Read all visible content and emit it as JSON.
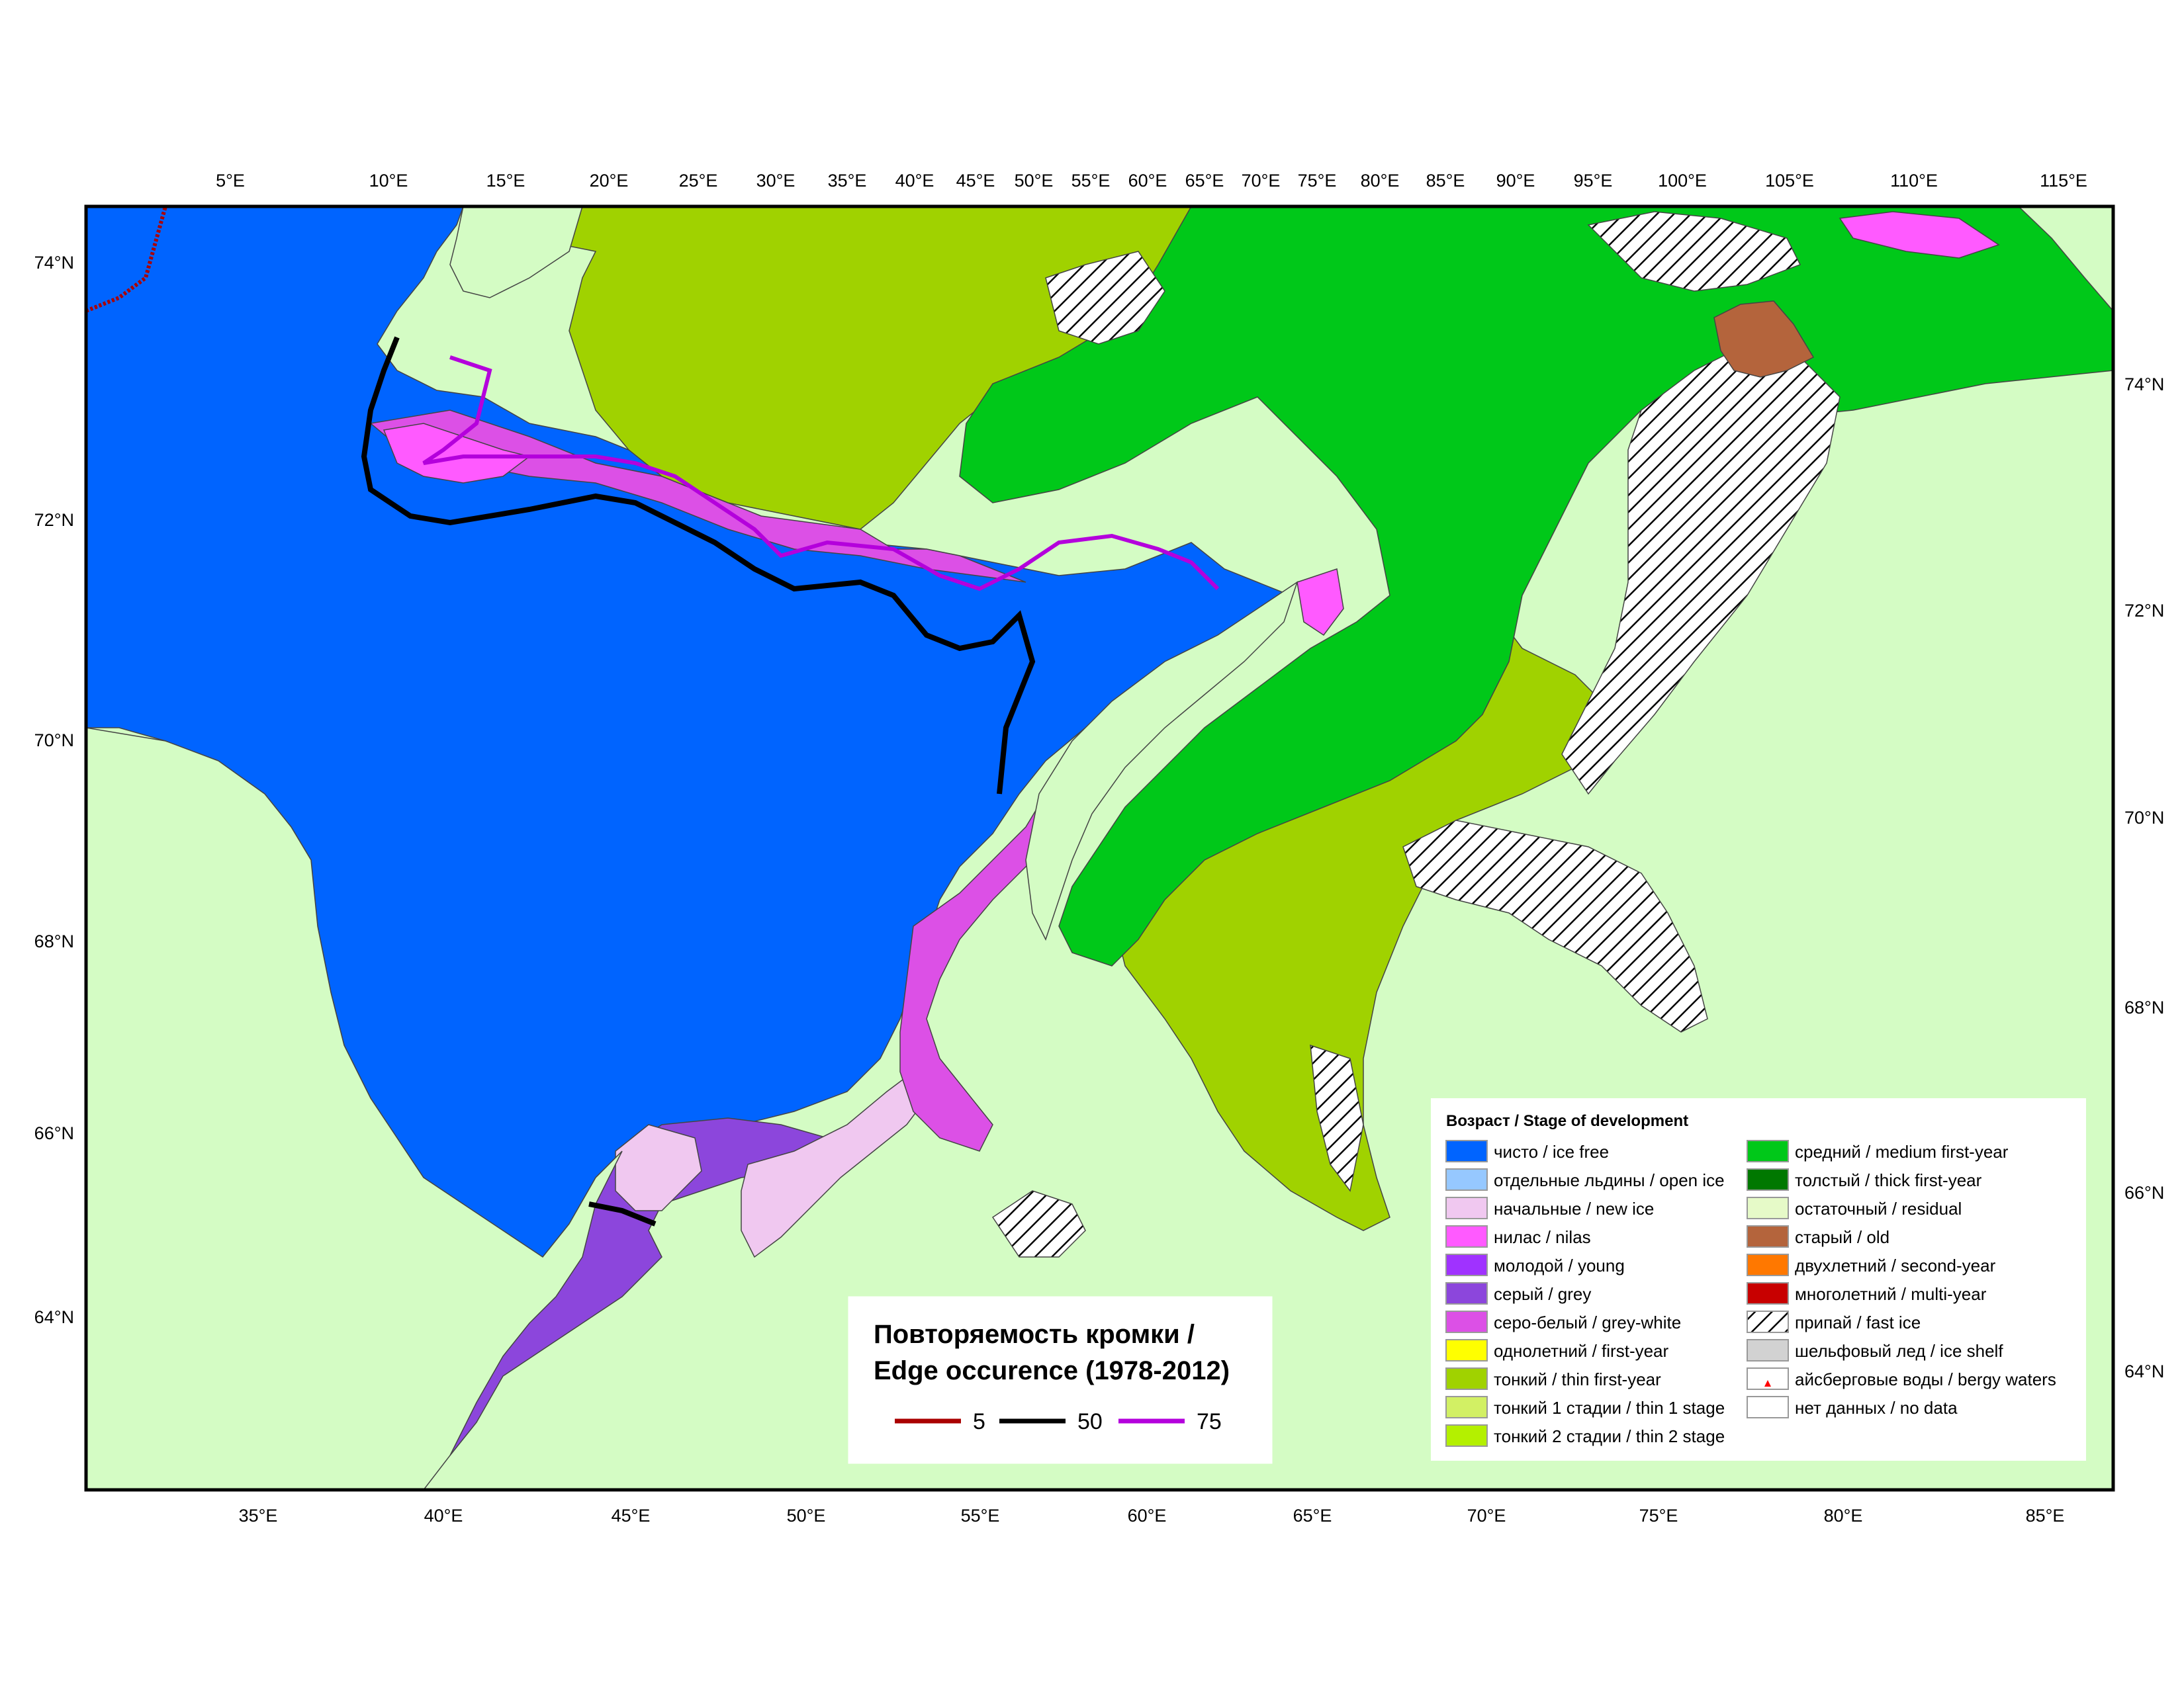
{
  "map": {
    "colors": {
      "land": "#d4fcc4",
      "ice_free": "#0064ff",
      "new_ice": "#f0c8f0",
      "nilas": "#ff5aff",
      "young": "#a032ff",
      "grey": "#8c46dc",
      "grey_white": "#dc50e6",
      "thin_first_year": "#a0d200",
      "medium_first_year": "#00c819",
      "old": "#b4643c",
      "edge_5": "#aa0000",
      "edge_50": "#000000",
      "edge_75": "#b400dc",
      "frame": "#000000"
    },
    "top_lon_labels": [
      "5°E",
      "10°E",
      "15°E",
      "20°E",
      "25°E",
      "30°E",
      "35°E",
      "40°E",
      "45°E",
      "50°E",
      "55°E",
      "60°E",
      "65°E",
      "70°E",
      "75°E",
      "80°E",
      "85°E",
      "90°E",
      "95°E",
      "100°E",
      "105°E",
      "110°E",
      "115°E"
    ],
    "bottom_lon_labels": [
      "35°E",
      "40°E",
      "45°E",
      "50°E",
      "55°E",
      "60°E",
      "65°E",
      "70°E",
      "75°E",
      "80°E",
      "85°E"
    ],
    "left_lat_labels": [
      "74°N",
      "72°N",
      "70°N",
      "68°N",
      "66°N",
      "64°N"
    ],
    "right_lat_labels": [
      "74°N",
      "72°N",
      "70°N",
      "68°N",
      "66°N",
      "64°N"
    ]
  },
  "edge_box": {
    "title_line1": "Повторяемость кромки /",
    "title_line2": "Edge occurence (1978-2012)",
    "items": [
      {
        "label": "5",
        "color": "#aa0000"
      },
      {
        "label": "50",
        "color": "#000000"
      },
      {
        "label": "75",
        "color": "#b400dc"
      }
    ]
  },
  "legend": {
    "title": "Возраст / Stage of development",
    "left_items": [
      {
        "label": "чисто / ice free",
        "color": "#0064ff"
      },
      {
        "label": "отдельные льдины / open ice",
        "color": "#96c8ff"
      },
      {
        "label": "начальные / new ice",
        "color": "#f0c8f0"
      },
      {
        "label": "нилас / nilas",
        "color": "#ff5aff"
      },
      {
        "label": "молодой / young",
        "color": "#a032ff"
      },
      {
        "label": "серый / grey",
        "color": "#8c46dc"
      },
      {
        "label": "серо-белый / grey-white",
        "color": "#dc50e6"
      },
      {
        "label": "однолетний / first-year",
        "color": "#ffff00"
      },
      {
        "label": "тонкий / thin first-year",
        "color": "#a0d200"
      },
      {
        "label": "тонкий 1 стадии / thin 1 stage",
        "color": "#d2f064"
      },
      {
        "label": "тонкий 2 стадии / thin 2 stage",
        "color": "#b4f000"
      }
    ],
    "right_items": [
      {
        "label": "средний / medium first-year",
        "color": "#00c819"
      },
      {
        "label": "толстый / thick first-year",
        "color": "#007800"
      },
      {
        "label": "остаточный / residual",
        "color": "#e6fac8"
      },
      {
        "label": "старый / old",
        "color": "#b4643c"
      },
      {
        "label": "двухлетний / second-year",
        "color": "#ff7800"
      },
      {
        "label": "многолетний / multi-year",
        "color": "#c80000"
      },
      {
        "label": "припай / fast ice",
        "color": "hatch"
      },
      {
        "label": "шельфовый лед / ice shelf",
        "color": "#d2d2d2"
      },
      {
        "label": "айсберговые воды / bergy waters",
        "color": "berg"
      },
      {
        "label": "нет данных / no data",
        "color": "#ffffff"
      }
    ]
  }
}
